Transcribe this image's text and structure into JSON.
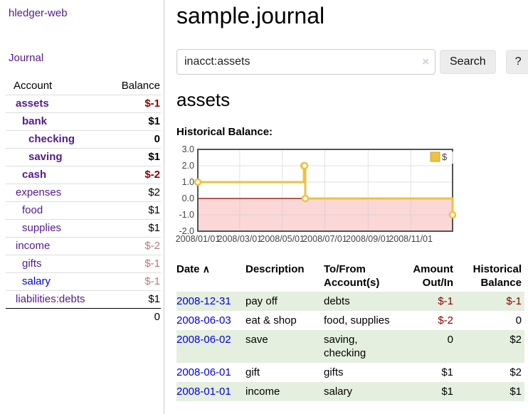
{
  "app": {
    "title": "hledger-web"
  },
  "sidebar": {
    "nav_journal": "Journal",
    "table": {
      "account_header": "Account",
      "balance_header": "Balance",
      "accounts": [
        {
          "name": "assets",
          "indent": 1,
          "bold": true,
          "balance": "$-1",
          "balance_style": "neg-strong"
        },
        {
          "name": "bank",
          "indent": 2,
          "bold": true,
          "balance": "$1",
          "balance_style": "pos"
        },
        {
          "name": "checking",
          "indent": 3,
          "bold": true,
          "balance": "0",
          "balance_style": "pos"
        },
        {
          "name": "saving",
          "indent": 3,
          "bold": true,
          "balance": "$1",
          "balance_style": "pos"
        },
        {
          "name": "cash",
          "indent": 2,
          "bold": true,
          "balance": "$-2",
          "balance_style": "neg-strong"
        },
        {
          "name": "expenses",
          "indent": 1,
          "bold": false,
          "balance": "$2",
          "balance_style": "pos"
        },
        {
          "name": "food",
          "indent": 2,
          "bold": false,
          "balance": "$1",
          "balance_style": "pos"
        },
        {
          "name": "supplies",
          "indent": 2,
          "bold": false,
          "balance": "$1",
          "balance_style": "pos"
        },
        {
          "name": "income",
          "indent": 1,
          "bold": false,
          "balance": "$-2",
          "balance_style": "neg-soft"
        },
        {
          "name": "gifts",
          "indent": 2,
          "bold": false,
          "balance": "$-1",
          "balance_style": "neg-soft"
        },
        {
          "name": "salary",
          "indent": 2,
          "bold": false,
          "link_color": "blue",
          "balance": "$-1",
          "balance_style": "neg-soft"
        },
        {
          "name": "liabilities:debts",
          "indent": 1,
          "bold": false,
          "balance": "$1",
          "balance_style": "pos"
        }
      ],
      "total": "0"
    }
  },
  "main": {
    "title": "sample.journal",
    "search": {
      "value": "inacct:assets",
      "clear_icon": "×",
      "button": "Search",
      "help_button": "?"
    },
    "account_heading": "assets",
    "chart_label": "Historical Balance:"
  },
  "chart_data": {
    "type": "line",
    "step": true,
    "title": "Historical Balance",
    "series": [
      {
        "name": "$",
        "color": "#edc240",
        "points": [
          [
            "2008-01-01",
            1
          ],
          [
            "2008-06-01",
            2
          ],
          [
            "2008-06-02",
            2
          ],
          [
            "2008-06-03",
            0
          ],
          [
            "2008-12-31",
            -1
          ]
        ]
      }
    ],
    "x_ticks": [
      "2008/01/01",
      "2008/03/01",
      "2008/05/01",
      "2008/07/01",
      "2008/09/01",
      "2008/11/01"
    ],
    "y_ticks": [
      "3.0",
      "2.0",
      "1.0",
      "0.0",
      "-1.0",
      "-2.0"
    ],
    "ylim": [
      -2,
      3
    ],
    "xlim": [
      "2008-01-01",
      "2008-12-31"
    ],
    "grid": true,
    "legend_position": "top-right",
    "legend_label": "$",
    "negative_fill": "#fbd7d7",
    "zero_line_color": "#8b0000"
  },
  "register": {
    "headers": {
      "date": "Date",
      "sort_indicator": "∧",
      "description": "Description",
      "accounts": "To/From Account(s)",
      "amount": "Amount Out/In",
      "balance": "Historical Balance"
    },
    "rows": [
      {
        "date": "2008-12-31",
        "description": "pay off",
        "accounts": "debts",
        "amount": "$-1",
        "amount_neg": true,
        "balance": "$-1",
        "balance_neg": true,
        "shade": true
      },
      {
        "date": "2008-06-03",
        "description": "eat & shop",
        "accounts": "food, supplies",
        "amount": "$-2",
        "amount_neg": true,
        "balance": "0",
        "balance_neg": false,
        "shade": false
      },
      {
        "date": "2008-06-02",
        "description": "save",
        "accounts": "saving, checking",
        "amount": "0",
        "amount_neg": false,
        "balance": "$2",
        "balance_neg": false,
        "shade": true
      },
      {
        "date": "2008-06-01",
        "description": "gift",
        "accounts": "gifts",
        "amount": "$1",
        "amount_neg": false,
        "balance": "$2",
        "balance_neg": false,
        "shade": false
      },
      {
        "date": "2008-01-01",
        "description": "income",
        "accounts": "salary",
        "amount": "$1",
        "amount_neg": false,
        "balance": "$1",
        "balance_neg": false,
        "shade": true
      }
    ]
  }
}
